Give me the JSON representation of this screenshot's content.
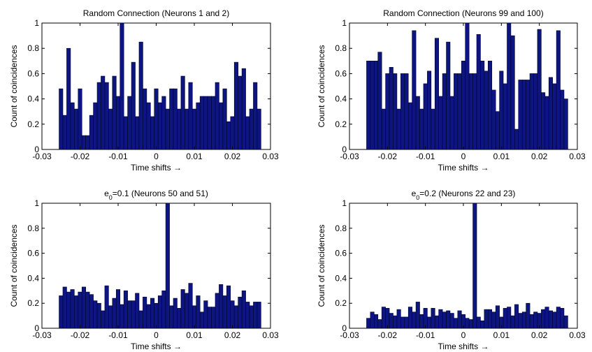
{
  "chart_data": [
    {
      "type": "bar",
      "title": "Random Connection (Neurons 1 and 2)",
      "title_sub": "",
      "xlabel": "Time shifts →",
      "ylabel": "Count of coincidences",
      "xlim": [
        -0.03,
        0.03
      ],
      "ylim": [
        0,
        1
      ],
      "xticks": [
        "-0.03",
        "-0.02",
        "-0.01",
        "0",
        "0.01",
        "0.02",
        "0.03"
      ],
      "yticks": [
        "0",
        "0.2",
        "0.4",
        "0.6",
        "0.8",
        "1"
      ],
      "bin_width": 0.001,
      "x_start": -0.025,
      "values": [
        0.48,
        0.27,
        0.8,
        0.37,
        0.32,
        0.48,
        0.11,
        0.11,
        0.27,
        0.37,
        0.53,
        0.58,
        0.53,
        0.32,
        0.58,
        0.42,
        1.0,
        0.26,
        0.42,
        0.69,
        0.26,
        0.85,
        0.48,
        0.37,
        0.26,
        0.48,
        0.37,
        0.42,
        0.32,
        0.48,
        0.48,
        0.32,
        0.58,
        0.32,
        0.53,
        0.32,
        0.37,
        0.42,
        0.42,
        0.42,
        0.42,
        0.53,
        0.37,
        0.48,
        0.22,
        0.26,
        0.69,
        0.58,
        0.64,
        0.26,
        0.32,
        0.53,
        0.32
      ],
      "grid": false
    },
    {
      "type": "bar",
      "title": "Random Connection (Neurons 99 and 100)",
      "title_sub": "",
      "xlabel": "Time shifts →",
      "ylabel": "Count of coincidences",
      "xlim": [
        -0.03,
        0.03
      ],
      "ylim": [
        0,
        1
      ],
      "xticks": [
        "-0.03",
        "-0.02",
        "-0.01",
        "0",
        "0.01",
        "0.02",
        "0.03"
      ],
      "yticks": [
        "0",
        "0.2",
        "0.4",
        "0.6",
        "0.8",
        "1"
      ],
      "bin_width": 0.001,
      "x_start": -0.025,
      "values": [
        0.7,
        0.7,
        0.7,
        0.77,
        0.32,
        0.6,
        0.65,
        0.6,
        0.32,
        0.6,
        0.6,
        0.37,
        0.94,
        0.42,
        0.32,
        0.52,
        0.62,
        0.32,
        0.88,
        0.42,
        0.6,
        0.85,
        0.42,
        0.6,
        0.6,
        0.7,
        1.0,
        0.6,
        0.6,
        0.91,
        0.7,
        0.62,
        0.7,
        0.47,
        0.3,
        0.62,
        0.52,
        1.0,
        0.9,
        0.16,
        0.55,
        0.55,
        0.55,
        0.6,
        0.6,
        0.95,
        0.45,
        0.42,
        0.57,
        0.52,
        0.94,
        0.47,
        0.4
      ],
      "grid": false
    },
    {
      "type": "bar",
      "title": "e",
      "title_sub": "0",
      "title_rest": "=0.1 (Neurons 50 and 51)",
      "xlabel": "Time shifts →",
      "ylabel": "Count of coincidences",
      "xlim": [
        -0.03,
        0.03
      ],
      "ylim": [
        0,
        1
      ],
      "xticks": [
        "-0.03",
        "-0.02",
        "-0.01",
        "0",
        "0.01",
        "0.02",
        "0.03"
      ],
      "yticks": [
        "0",
        "0.2",
        "0.4",
        "0.6",
        "0.8",
        "1"
      ],
      "bin_width": 0.001,
      "x_start": -0.025,
      "values": [
        0.26,
        0.33,
        0.29,
        0.31,
        0.26,
        0.29,
        0.33,
        0.29,
        0.27,
        0.22,
        0.2,
        0.14,
        0.34,
        0.18,
        0.24,
        0.31,
        0.19,
        0.3,
        0.22,
        0.22,
        0.28,
        0.14,
        0.25,
        0.19,
        0.24,
        0.2,
        0.26,
        0.3,
        1.0,
        0.18,
        0.24,
        0.16,
        0.31,
        0.28,
        0.36,
        0.18,
        0.26,
        0.13,
        0.22,
        0.17,
        0.17,
        0.28,
        0.35,
        0.26,
        0.34,
        0.22,
        0.18,
        0.25,
        0.3,
        0.21,
        0.18,
        0.21,
        0.21
      ],
      "grid": false
    },
    {
      "type": "bar",
      "title": "e",
      "title_sub": "0",
      "title_rest": "=0.2 (Neurons 22 and 23)",
      "xlabel": "Time shifts →",
      "ylabel": "Count of coincidences",
      "xlim": [
        -0.03,
        0.03
      ],
      "ylim": [
        0,
        1
      ],
      "xticks": [
        "-0.03",
        "-0.02",
        "-0.01",
        "0",
        "0.01",
        "0.02",
        "0.03"
      ],
      "yticks": [
        "0",
        "0.2",
        "0.4",
        "0.6",
        "0.8",
        "1"
      ],
      "bin_width": 0.001,
      "x_start": -0.025,
      "values": [
        0.08,
        0.13,
        0.11,
        0.07,
        0.17,
        0.16,
        0.12,
        0.1,
        0.15,
        0.09,
        0.09,
        0.17,
        0.13,
        0.21,
        0.11,
        0.16,
        0.09,
        0.16,
        0.1,
        0.15,
        0.13,
        0.14,
        0.12,
        0.08,
        0.14,
        0.11,
        0.08,
        0.07,
        1.0,
        0.09,
        0.06,
        0.15,
        0.15,
        0.13,
        0.18,
        0.09,
        0.16,
        0.17,
        0.1,
        0.19,
        0.12,
        0.13,
        0.2,
        0.11,
        0.13,
        0.12,
        0.15,
        0.17,
        0.14,
        0.13,
        0.17,
        0.16,
        0.1
      ]
    }
  ]
}
